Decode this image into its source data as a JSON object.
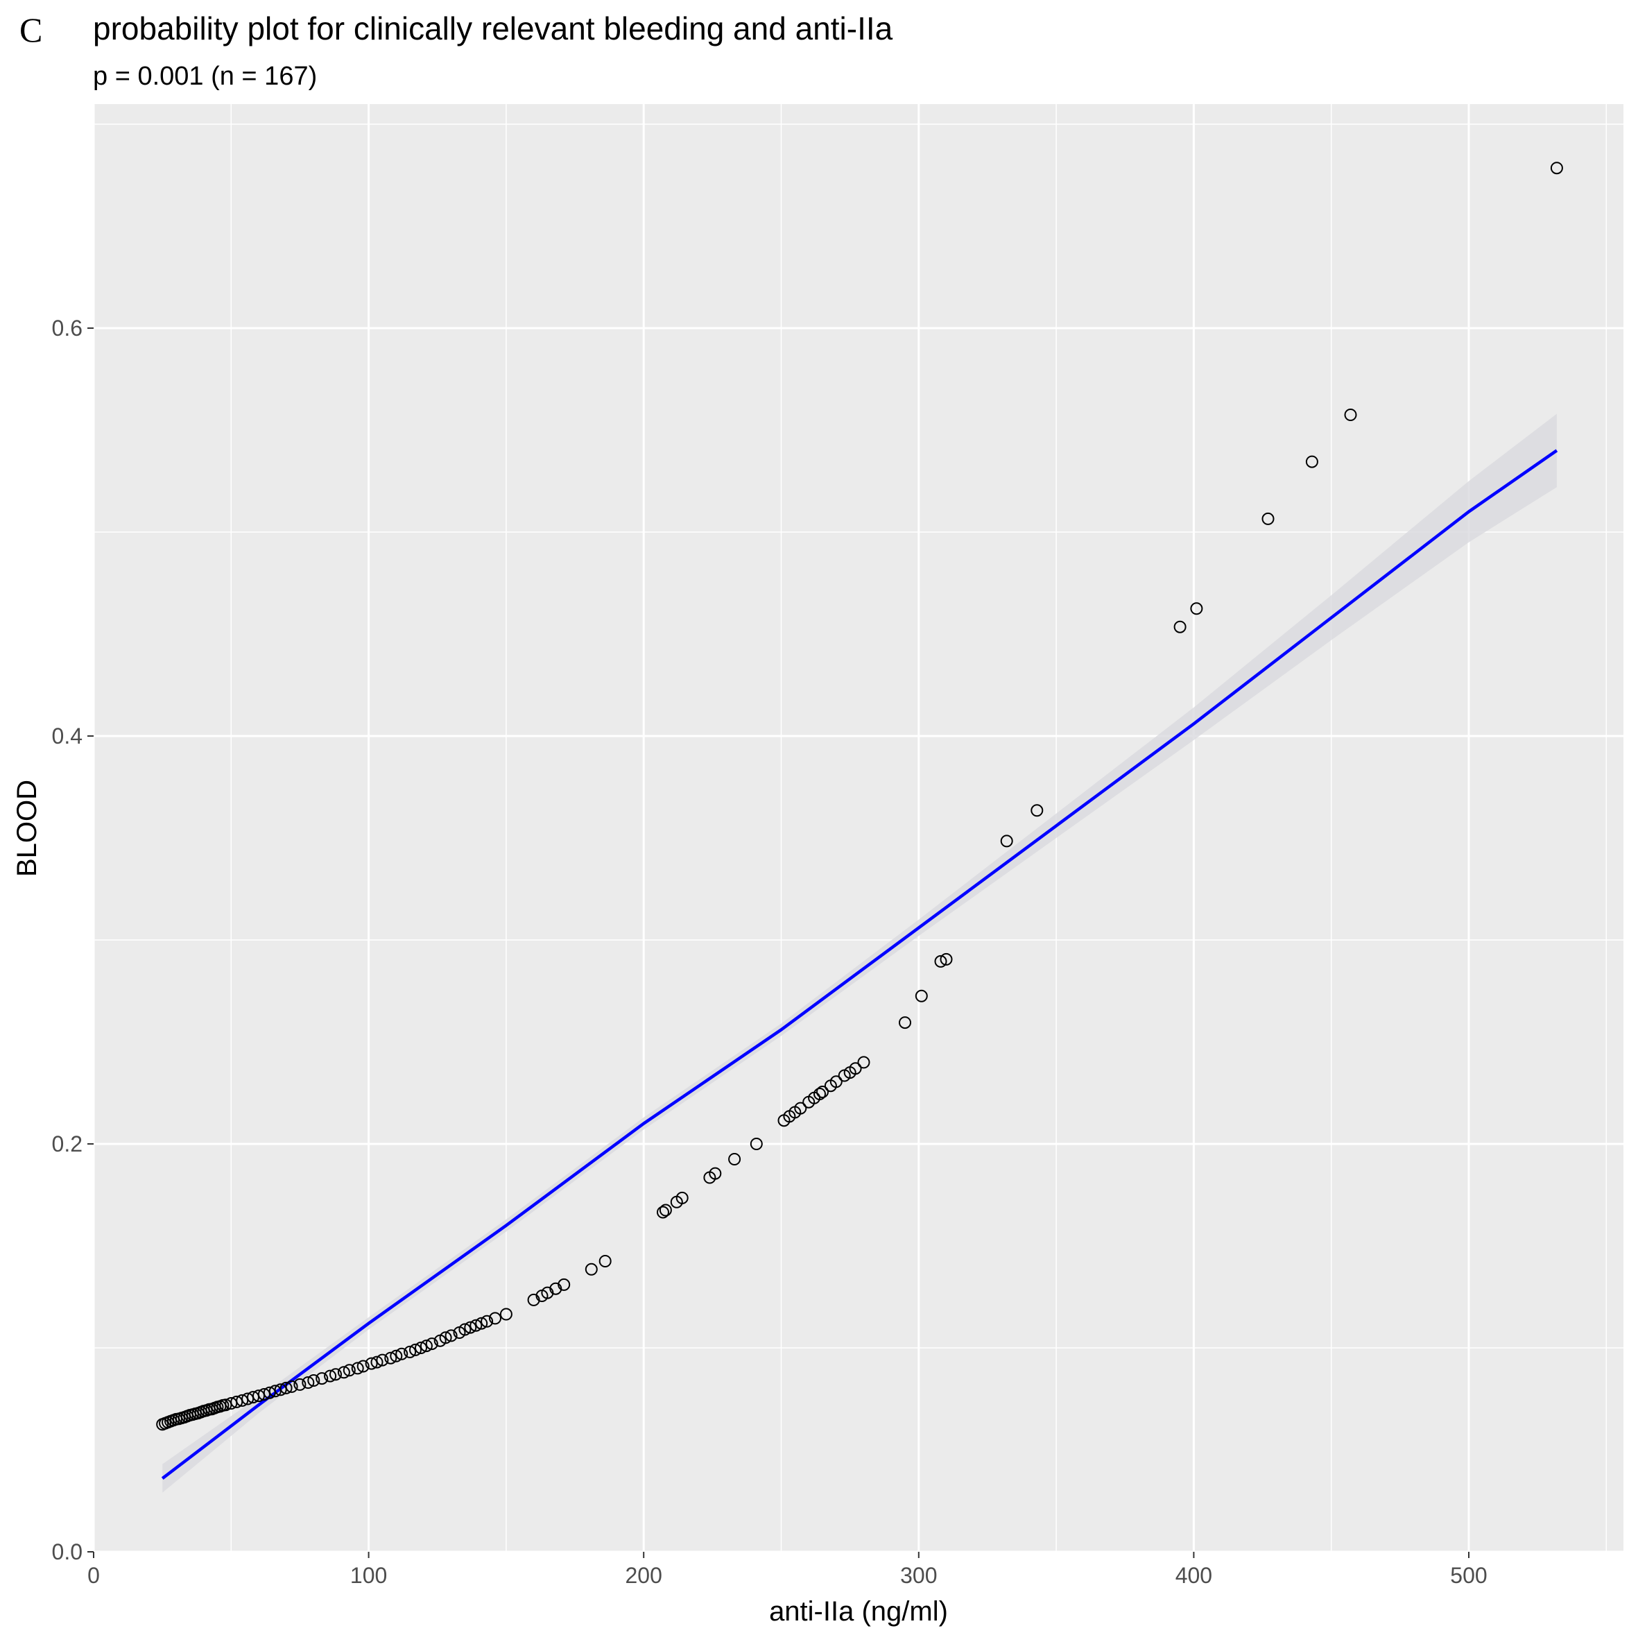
{
  "panel_label": "C",
  "colors": {
    "panel_background": "#ebebeb",
    "grid": "#ffffff",
    "fit_line": "#0000ff",
    "confidence_band": "#d9d9de",
    "points": "#000000",
    "text": "#000000",
    "tick_text": "#4d4d4d"
  },
  "chart_data": {
    "type": "scatter",
    "title": "probability plot for clinically relevant bleeding and anti-IIa",
    "subtitle": "p = 0.001 (n = 167)",
    "xlabel": "anti-IIa (ng/ml)",
    "ylabel": "BLOOD",
    "xlim": [
      0,
      555
    ],
    "ylim": [
      0,
      0.7
    ],
    "xticks": [
      0,
      100,
      200,
      300,
      400,
      500
    ],
    "xtick_labels": [
      "0",
      "100",
      "200",
      "300",
      "400",
      "500"
    ],
    "yticks": [
      0.0,
      0.2,
      0.4,
      0.6
    ],
    "ytick_labels": [
      "0.0",
      "0.2",
      "0.4",
      "0.6"
    ],
    "grid": true,
    "legend": "none",
    "series": [
      {
        "type": "scatter",
        "marker": "open-circle",
        "points": [
          [
            25,
            0.0625
          ],
          [
            26,
            0.063
          ],
          [
            27,
            0.0635
          ],
          [
            28,
            0.064
          ],
          [
            29,
            0.0645
          ],
          [
            30,
            0.065
          ],
          [
            31,
            0.0652
          ],
          [
            32,
            0.0656
          ],
          [
            33,
            0.066
          ],
          [
            34,
            0.0665
          ],
          [
            35,
            0.067
          ],
          [
            36,
            0.0673
          ],
          [
            37,
            0.0677
          ],
          [
            38,
            0.068
          ],
          [
            39,
            0.0685
          ],
          [
            40,
            0.069
          ],
          [
            41,
            0.0693
          ],
          [
            42,
            0.0698
          ],
          [
            43,
            0.07
          ],
          [
            44,
            0.0705
          ],
          [
            45,
            0.071
          ],
          [
            46,
            0.0713
          ],
          [
            47,
            0.0718
          ],
          [
            48,
            0.072
          ],
          [
            50,
            0.0728
          ],
          [
            52,
            0.0735
          ],
          [
            54,
            0.0742
          ],
          [
            56,
            0.075
          ],
          [
            58,
            0.0758
          ],
          [
            60,
            0.0765
          ],
          [
            62,
            0.0772
          ],
          [
            64,
            0.078
          ],
          [
            66,
            0.0788
          ],
          [
            68,
            0.0795
          ],
          [
            70,
            0.0803
          ],
          [
            72,
            0.081
          ],
          [
            75,
            0.082
          ],
          [
            78,
            0.083
          ],
          [
            80,
            0.084
          ],
          [
            83,
            0.085
          ],
          [
            86,
            0.0862
          ],
          [
            88,
            0.087
          ],
          [
            91,
            0.088
          ],
          [
            93,
            0.089
          ],
          [
            96,
            0.09
          ],
          [
            98,
            0.091
          ],
          [
            101,
            0.0923
          ],
          [
            103,
            0.093
          ],
          [
            105,
            0.094
          ],
          [
            108,
            0.095
          ],
          [
            110,
            0.096
          ],
          [
            112,
            0.097
          ],
          [
            115,
            0.098
          ],
          [
            117,
            0.099
          ],
          [
            119,
            0.1
          ],
          [
            121,
            0.101
          ],
          [
            123,
            0.102
          ],
          [
            126,
            0.1035
          ],
          [
            128,
            0.105
          ],
          [
            130,
            0.106
          ],
          [
            133,
            0.1075
          ],
          [
            135,
            0.109
          ],
          [
            137,
            0.11
          ],
          [
            139,
            0.111
          ],
          [
            141,
            0.112
          ],
          [
            143,
            0.113
          ],
          [
            146,
            0.1145
          ],
          [
            150,
            0.1165
          ],
          [
            160,
            0.1235
          ],
          [
            163,
            0.1255
          ],
          [
            165,
            0.127
          ],
          [
            168,
            0.129
          ],
          [
            171,
            0.131
          ],
          [
            181,
            0.1385
          ],
          [
            186,
            0.1425
          ],
          [
            207,
            0.1665
          ],
          [
            208,
            0.1675
          ],
          [
            212,
            0.1715
          ],
          [
            214,
            0.1735
          ],
          [
            224,
            0.1835
          ],
          [
            226,
            0.1855
          ],
          [
            233,
            0.1925
          ],
          [
            241,
            0.2
          ],
          [
            251,
            0.2115
          ],
          [
            253,
            0.2135
          ],
          [
            255,
            0.2155
          ],
          [
            257,
            0.2175
          ],
          [
            260,
            0.2205
          ],
          [
            262,
            0.2225
          ],
          [
            264,
            0.2245
          ],
          [
            265,
            0.2255
          ],
          [
            268,
            0.2285
          ],
          [
            270,
            0.2305
          ],
          [
            273,
            0.2335
          ],
          [
            275,
            0.235
          ],
          [
            277,
            0.237
          ],
          [
            280,
            0.24
          ],
          [
            295,
            0.2595
          ],
          [
            301,
            0.2725
          ],
          [
            308,
            0.2895
          ],
          [
            310,
            0.2905
          ],
          [
            332,
            0.3485
          ],
          [
            343,
            0.3635
          ],
          [
            395,
            0.4535
          ],
          [
            401,
            0.4625
          ],
          [
            427,
            0.5065
          ],
          [
            443,
            0.5345
          ],
          [
            457,
            0.5575
          ],
          [
            532,
            0.6785
          ]
        ]
      },
      {
        "type": "line",
        "name": "fit",
        "x": [
          25,
          60,
          100,
          150,
          200,
          250,
          300,
          350,
          400,
          450,
          500,
          532
        ],
        "y": [
          0.036,
          0.072,
          0.112,
          0.16,
          0.21,
          0.256,
          0.306,
          0.356,
          0.406,
          0.458,
          0.51,
          0.54
        ],
        "band_lower": [
          0.029,
          0.068,
          0.109,
          0.157,
          0.207,
          0.253,
          0.302,
          0.35,
          0.398,
          0.447,
          0.495,
          0.522
        ],
        "band_upper": [
          0.043,
          0.076,
          0.115,
          0.163,
          0.213,
          0.259,
          0.31,
          0.362,
          0.414,
          0.469,
          0.525,
          0.558
        ]
      }
    ]
  }
}
